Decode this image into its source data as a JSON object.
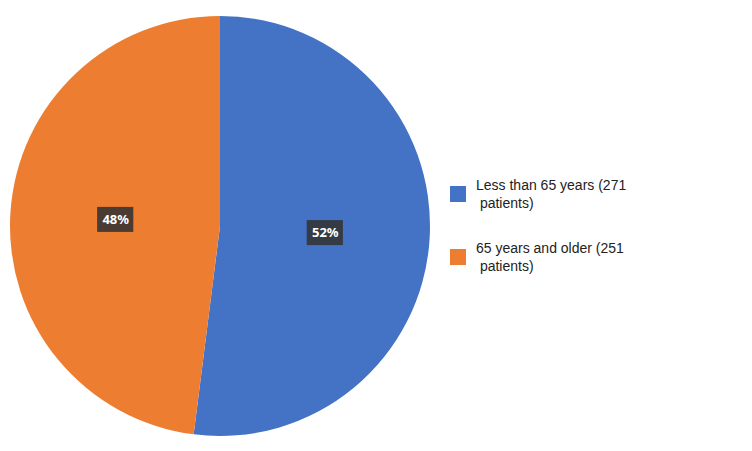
{
  "chart_data": {
    "type": "pie",
    "categories": [
      "Less than 65 years (271\n patients)",
      "65 years and older (251\n patients)"
    ],
    "values": [
      52,
      48
    ],
    "value_labels": [
      "52%",
      "48%"
    ],
    "colors": [
      "#4472C4",
      "#ED7D31"
    ],
    "data_labels": true,
    "legend": "right"
  }
}
